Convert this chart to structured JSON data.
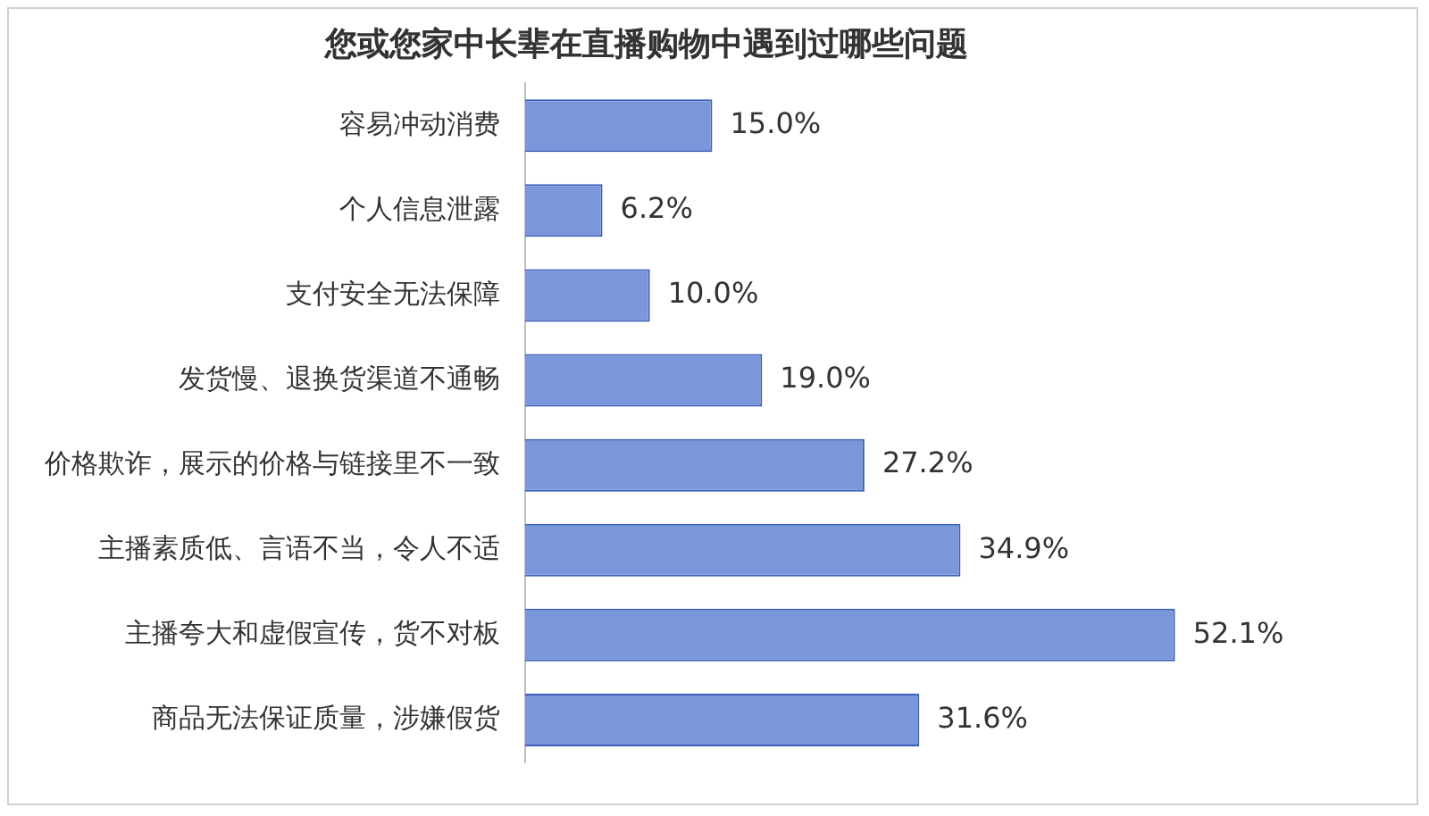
{
  "chart_data": {
    "type": "bar",
    "orientation": "horizontal",
    "title": "您或您家中长辈在直播购物中遇到过哪些问题",
    "categories": [
      "容易冲动消费",
      "个人信息泄露",
      "支付安全无法保障",
      "发货慢、退换货渠道不通畅",
      "价格欺诈，展示的价格与链接里不一致",
      "主播素质低、言语不当，令人不适",
      "主播夸大和虚假宣传，货不对板",
      "商品无法保证质量，涉嫌假货"
    ],
    "values": [
      15.0,
      6.2,
      10.0,
      19.0,
      27.2,
      34.9,
      52.1,
      31.6
    ],
    "value_labels": [
      "15.0%",
      "6.2%",
      "10.0%",
      "19.0%",
      "27.2%",
      "34.9%",
      "52.1%",
      "31.6%"
    ],
    "color": "#7b97dc",
    "legend": false
  }
}
